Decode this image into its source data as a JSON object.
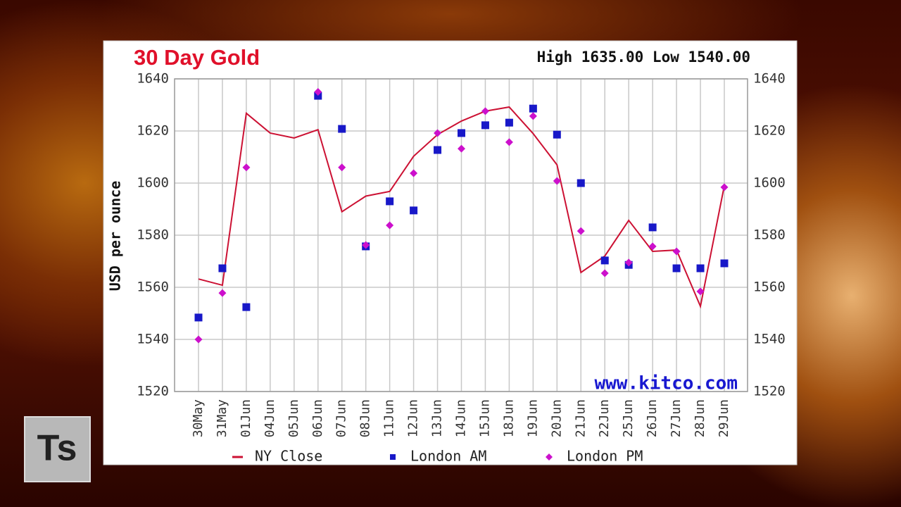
{
  "chart_data": {
    "type": "line",
    "title": "30 Day Gold",
    "subtitle": "High 1635.00 Low 1540.00",
    "y_label": "USD per ounce",
    "annotation": "www.kitco.com",
    "categories": [
      "30May",
      "31May",
      "01Jun",
      "04Jun",
      "05Jun",
      "06Jun",
      "07Jun",
      "08Jun",
      "11Jun",
      "12Jun",
      "13Jun",
      "14Jun",
      "15Jun",
      "18Jun",
      "19Jun",
      "20Jun",
      "21Jun",
      "22Jun",
      "25Jun",
      "26Jun",
      "27Jun",
      "28Jun",
      "29Jun"
    ],
    "series": [
      {
        "name": "NY Close",
        "color": "#cc1133",
        "marker": "line",
        "values": [
          1563.2,
          1560.8,
          1626.8,
          1619.2,
          1617.3,
          1620.5,
          1589.0,
          1595.0,
          1596.8,
          1610.3,
          1618.6,
          1623.8,
          1627.6,
          1629.2,
          1619.0,
          1607.0,
          1565.7,
          1572.0,
          1585.7,
          1573.8,
          1574.3,
          1552.7,
          1599.0
        ]
      },
      {
        "name": "London AM",
        "color": "#1818c8",
        "marker": "square",
        "values": [
          1548.4,
          1567.3,
          1552.4,
          null,
          null,
          1633.5,
          1620.8,
          1575.7,
          1593.0,
          1589.5,
          1612.7,
          1619.2,
          1622.2,
          1623.2,
          1628.6,
          1618.6,
          1600.0,
          1570.3,
          1568.6,
          1583.0,
          1567.3,
          1567.3,
          1569.2
        ]
      },
      {
        "name": "London PM",
        "color": "#cc10cc",
        "marker": "diamond",
        "values": [
          1540.0,
          1557.8,
          1606.0,
          null,
          null,
          1635.0,
          1606.0,
          1576.2,
          1583.8,
          1603.8,
          1619.2,
          1613.2,
          1627.6,
          1615.7,
          1625.7,
          1600.8,
          1581.6,
          1565.4,
          1569.5,
          1575.7,
          1573.8,
          1558.4,
          1598.4
        ]
      }
    ],
    "ylim": [
      1520,
      1640
    ],
    "yticks": [
      1520,
      1540,
      1560,
      1580,
      1600,
      1620,
      1640
    ],
    "grid": true,
    "legend": "bottom"
  },
  "logo": "Ts"
}
